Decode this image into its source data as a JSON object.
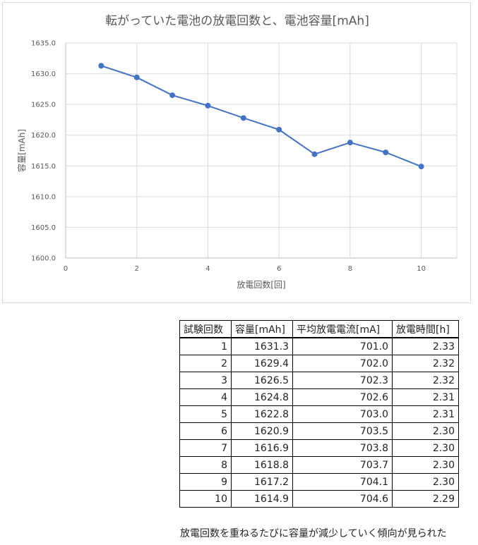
{
  "chart_data": {
    "type": "line",
    "title": "転がっていた電池の放電回数と、電池容量[mAh]",
    "xlabel": "放電回数[回]",
    "ylabel": "容量[mAh]",
    "xlim": [
      0,
      11
    ],
    "ylim": [
      1600.0,
      1635.0
    ],
    "xticks": [
      0,
      2,
      4,
      6,
      8,
      10
    ],
    "yticks": [
      1600.0,
      1605.0,
      1610.0,
      1615.0,
      1620.0,
      1625.0,
      1630.0,
      1635.0
    ],
    "ytick_labels": [
      "1600.0",
      "1605.0",
      "1610.0",
      "1615.0",
      "1620.0",
      "1625.0",
      "1630.0",
      "1635.0"
    ],
    "grid": true,
    "legend": "none",
    "series": [
      {
        "x": [
          1,
          2,
          3,
          4,
          5,
          6,
          7,
          8,
          9,
          10
        ],
        "values": [
          1631.3,
          1629.4,
          1626.5,
          1624.8,
          1622.8,
          1620.9,
          1616.9,
          1618.8,
          1617.2,
          1614.9
        ],
        "color": "#4472C4"
      }
    ]
  },
  "table": {
    "headers": [
      "試験回数",
      "容量[mAh]",
      "平均放電電流[mA]",
      "放電時間[h]"
    ],
    "rows": [
      [
        "1",
        "1631.3",
        "701.0",
        "2.33"
      ],
      [
        "2",
        "1629.4",
        "702.0",
        "2.32"
      ],
      [
        "3",
        "1626.5",
        "702.3",
        "2.32"
      ],
      [
        "4",
        "1624.8",
        "702.6",
        "2.31"
      ],
      [
        "5",
        "1622.8",
        "703.0",
        "2.31"
      ],
      [
        "6",
        "1620.9",
        "703.5",
        "2.30"
      ],
      [
        "7",
        "1616.9",
        "703.8",
        "2.30"
      ],
      [
        "8",
        "1618.8",
        "703.7",
        "2.30"
      ],
      [
        "9",
        "1617.2",
        "704.1",
        "2.30"
      ],
      [
        "10",
        "1614.9",
        "704.6",
        "2.29"
      ]
    ]
  },
  "note": "放電回数を重ねるたびに容量が減少していく傾向が見られた",
  "colors": {
    "line": "#4472C4",
    "grid": "#d9d9d9",
    "text": "#595959"
  }
}
